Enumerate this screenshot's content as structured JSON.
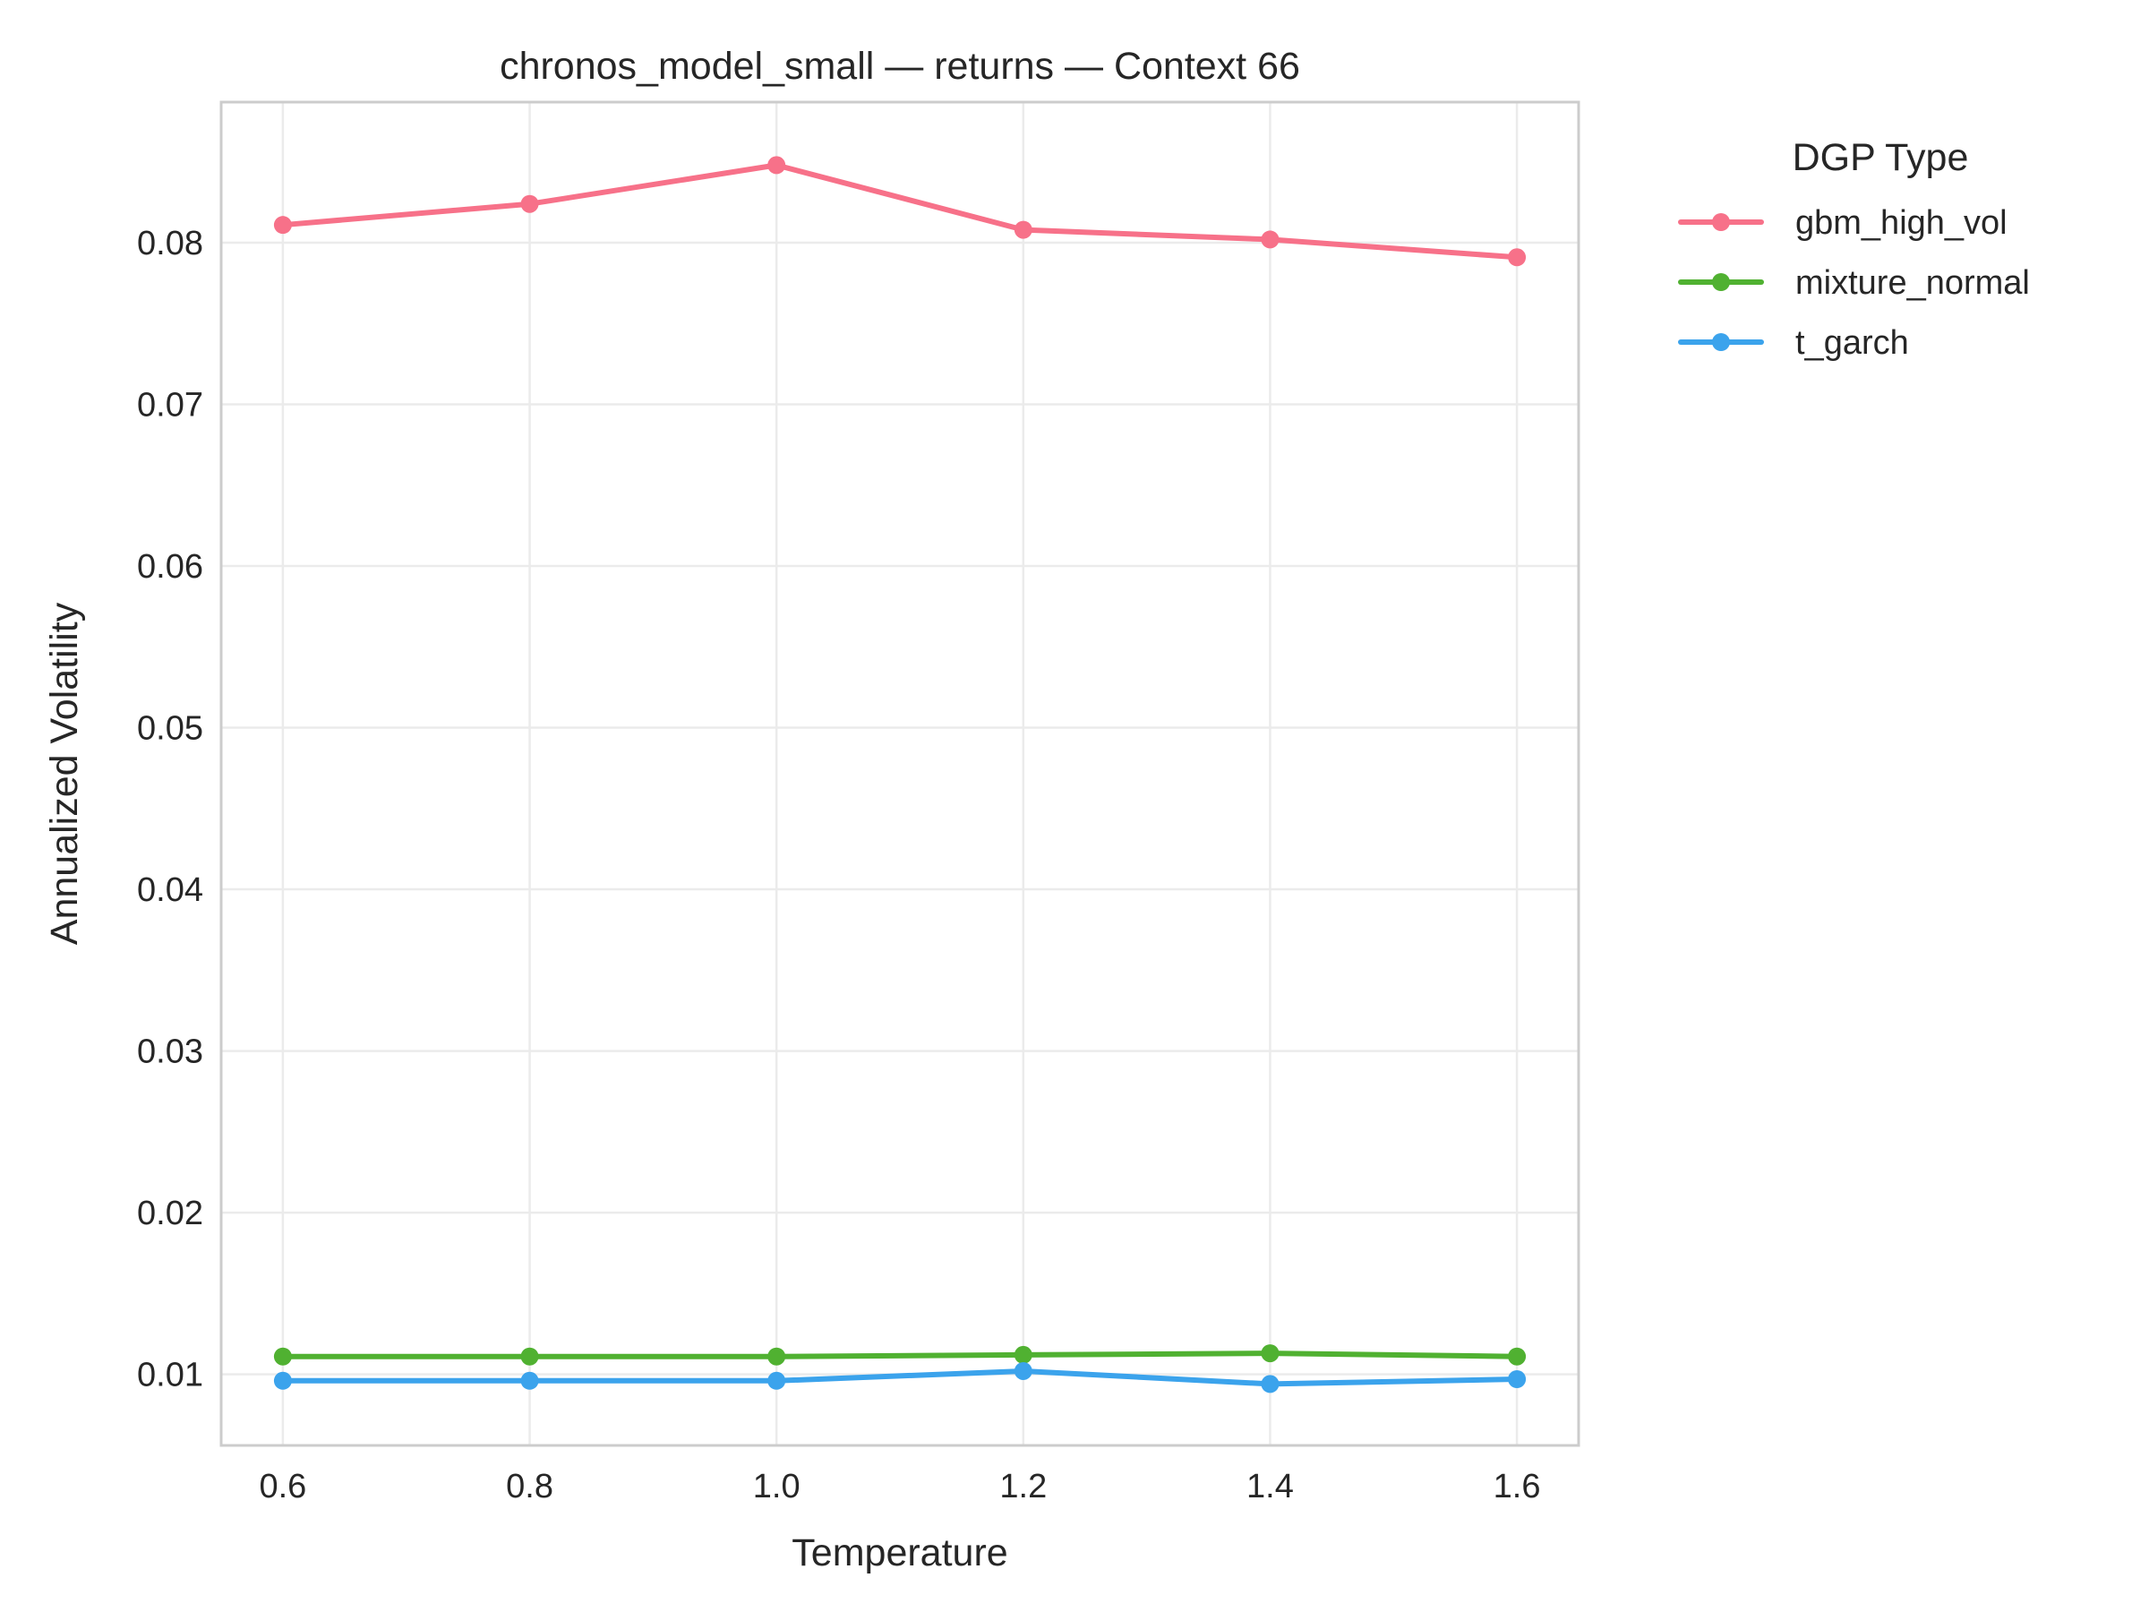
{
  "chart_data": {
    "type": "line",
    "title": "chronos_model_small — returns — Context 66",
    "xlabel": "Temperature",
    "ylabel": "Annualized Volatility",
    "x": [
      0.6,
      0.8,
      1.0,
      1.2,
      1.4,
      1.6
    ],
    "x_ticks": [
      "0.6",
      "0.8",
      "1.0",
      "1.2",
      "1.4",
      "1.6"
    ],
    "y_ticks": [
      "0.01",
      "0.02",
      "0.03",
      "0.04",
      "0.05",
      "0.06",
      "0.07",
      "0.08"
    ],
    "xlim": [
      0.55,
      1.65
    ],
    "ylim": [
      0.0056,
      0.0887
    ],
    "grid": true,
    "legend_title": "DGP Type",
    "legend_position": "outside-right-top",
    "series": [
      {
        "name": "gbm_high_vol",
        "color": "#f77189",
        "values": [
          0.0811,
          0.0824,
          0.0848,
          0.0808,
          0.0802,
          0.0791
        ]
      },
      {
        "name": "mixture_normal",
        "color": "#50b131",
        "values": [
          0.0111,
          0.0111,
          0.0111,
          0.0112,
          0.0113,
          0.0111
        ]
      },
      {
        "name": "t_garch",
        "color": "#3ba3ec",
        "values": [
          0.0096,
          0.0096,
          0.0096,
          0.0102,
          0.0094,
          0.0097
        ]
      }
    ]
  }
}
